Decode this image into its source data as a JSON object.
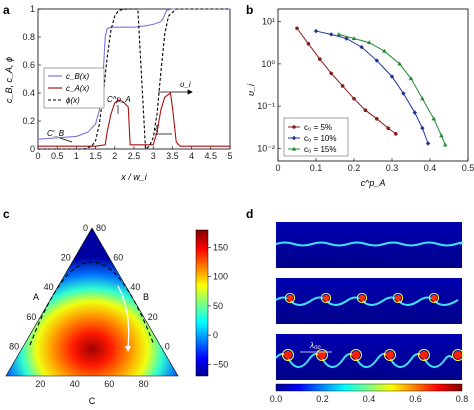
{
  "panels": {
    "a": {
      "label": "a",
      "ylabel": "c_B, c_A, ϕ",
      "xlabel": "x / w_i",
      "xticks": [
        "0",
        "0.5",
        "1",
        "1.5",
        "2",
        "2.5",
        "3",
        "3.5",
        "4",
        "4.5",
        "5"
      ],
      "yticks": [
        "0",
        "0.2",
        "0.4",
        "0.6",
        "0.8",
        "1"
      ],
      "legend": [
        "c_B(x)",
        "c_A(x)",
        "ϕ(x)"
      ],
      "annotations": {
        "cbprime": "C′_B",
        "capeak": "C^p_A",
        "vi": "υ_i",
        "xi": "ξ"
      }
    },
    "b": {
      "label": "b",
      "ylabel": "υ_i",
      "xlabel": "c^p_A",
      "xticks": [
        "0",
        "0.1",
        "0.2",
        "0.3",
        "0.4",
        "0.5"
      ],
      "yticks": [
        "10⁻²",
        "10⁻¹",
        "10⁰",
        "10¹"
      ],
      "legend": [
        "c₀ = 5%",
        "c₀ = 10%",
        "c₀ = 15%"
      ]
    },
    "c": {
      "label": "c",
      "axis_names": {
        "a": "A",
        "b": "B",
        "c": "C"
      },
      "left_ticks": [
        "0",
        "20",
        "40",
        "60",
        "80"
      ],
      "right_ticks": [
        "80",
        "60",
        "40",
        "20",
        "0"
      ],
      "bottom_ticks": [
        "20",
        "40",
        "60",
        "80"
      ],
      "colorbar_ticks": [
        "150",
        "100",
        "50",
        "0",
        "−50"
      ]
    },
    "d": {
      "label": "d",
      "lambda": "λ₀₀",
      "colorbar_ticks": [
        "0.0",
        "0.2",
        "0.4",
        "0.6",
        "0.8"
      ]
    }
  },
  "colors": {
    "cB": "#7777dd",
    "cA": "#aa1111",
    "phi": "#000000",
    "s5": "#8b1a1a",
    "s10": "#223399",
    "s15": "#228833"
  },
  "chart_data": [
    {
      "panel": "a",
      "type": "line",
      "xlim": [
        0,
        5
      ],
      "ylim": [
        0,
        1
      ],
      "series": [
        {
          "name": "c_B(x)",
          "x": [
            0,
            0.5,
            1,
            1.3,
            1.5,
            1.6,
            1.7,
            1.75,
            1.8,
            1.9,
            2.0,
            2.1,
            2.2,
            2.5,
            2.8,
            3.0,
            3.1,
            3.2,
            3.25,
            3.3,
            3.35,
            3.5,
            4,
            4.5,
            5
          ],
          "y": [
            0.07,
            0.08,
            0.09,
            0.12,
            0.18,
            0.28,
            0.55,
            0.8,
            0.86,
            0.87,
            0.87,
            0.87,
            0.87,
            0.87,
            0.88,
            0.89,
            0.9,
            0.91,
            0.93,
            0.96,
            0.99,
            1.0,
            1.0,
            1.0,
            1.0
          ]
        },
        {
          "name": "c_A(x)",
          "x": [
            0,
            1.5,
            1.75,
            1.8,
            1.9,
            2.0,
            2.1,
            2.2,
            2.35,
            2.4,
            2.6,
            3.0,
            3.1,
            3.2,
            3.3,
            3.45,
            3.5,
            3.6,
            3.7,
            4,
            5
          ],
          "y": [
            0.02,
            0.02,
            0.03,
            0.12,
            0.25,
            0.33,
            0.35,
            0.34,
            0.3,
            0.03,
            0.03,
            0.03,
            0.12,
            0.28,
            0.37,
            0.4,
            0.3,
            0.05,
            0.02,
            0.02,
            0.02
          ]
        },
        {
          "name": "ϕ(x)",
          "x": [
            0,
            1.2,
            1.4,
            1.5,
            1.6,
            1.7,
            1.8,
            1.9,
            2.0,
            2.1,
            2.3,
            2.6,
            2.8,
            2.9,
            3.0,
            3.1,
            3.2,
            3.3,
            3.4,
            3.6,
            4,
            5
          ],
          "y": [
            0,
            0,
            0.02,
            0.06,
            0.18,
            0.4,
            0.65,
            0.85,
            0.95,
            0.99,
            1.0,
            1.0,
            0.0,
            0.02,
            0.08,
            0.25,
            0.55,
            0.82,
            0.95,
            1.0,
            1.0,
            1.0
          ]
        }
      ]
    },
    {
      "panel": "b",
      "type": "line",
      "xlim": [
        0,
        0.5
      ],
      "ylim": [
        0.005,
        20
      ],
      "yscale": "log",
      "series": [
        {
          "name": "c₀ = 5%",
          "x": [
            0.05,
            0.08,
            0.11,
            0.14,
            0.17,
            0.2,
            0.23,
            0.26,
            0.29,
            0.31
          ],
          "y": [
            7,
            3,
            1.3,
            0.6,
            0.3,
            0.15,
            0.08,
            0.05,
            0.03,
            0.022
          ]
        },
        {
          "name": "c₀ = 10%",
          "x": [
            0.1,
            0.14,
            0.18,
            0.22,
            0.26,
            0.3,
            0.33,
            0.36,
            0.38,
            0.395
          ],
          "y": [
            6,
            5,
            4,
            2.5,
            1.2,
            0.5,
            0.2,
            0.07,
            0.03,
            0.013
          ]
        },
        {
          "name": "c₀ = 15%",
          "x": [
            0.16,
            0.2,
            0.24,
            0.28,
            0.32,
            0.35,
            0.38,
            0.41,
            0.43,
            0.44
          ],
          "y": [
            5,
            4,
            3.2,
            2,
            1,
            0.45,
            0.15,
            0.05,
            0.02,
            0.012
          ]
        }
      ]
    },
    {
      "panel": "c",
      "type": "heatmap",
      "colorbar_range": [
        -70,
        180
      ]
    }
  ]
}
